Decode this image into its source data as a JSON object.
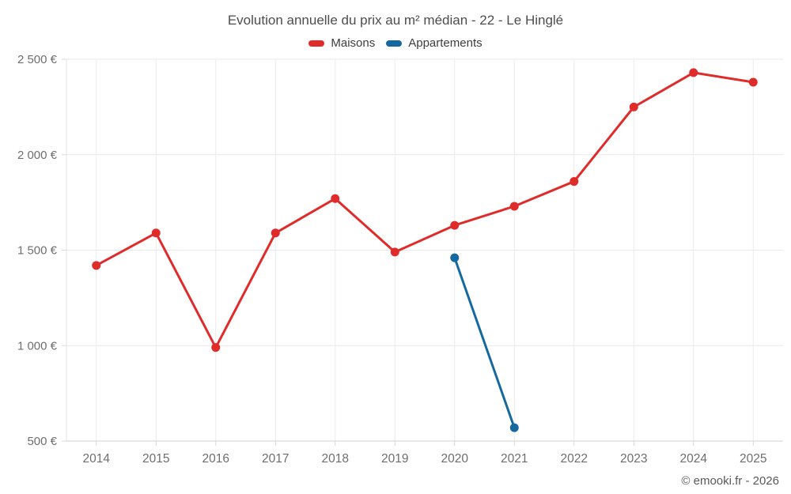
{
  "header": {
    "title": "Evolution annuelle du prix au m² médian - 22 - Le Hinglé"
  },
  "legend": {
    "items": [
      {
        "label": "Maisons",
        "color": "#e02b2b"
      },
      {
        "label": "Appartements",
        "color": "#16699f"
      }
    ]
  },
  "footer": {
    "credit": "© emooki.fr - 2026"
  },
  "chart_data": {
    "type": "line",
    "title": "Evolution annuelle du prix au m² médian - 22 - Le Hinglé",
    "categories": [
      "2014",
      "2015",
      "2016",
      "2017",
      "2018",
      "2019",
      "2020",
      "2021",
      "2022",
      "2023",
      "2024",
      "2025"
    ],
    "series": [
      {
        "name": "Maisons",
        "color": "#e02b2b",
        "values": [
          1420,
          1590,
          990,
          1590,
          1770,
          1490,
          1630,
          1730,
          1860,
          2250,
          2430,
          2380
        ]
      },
      {
        "name": "Appartements",
        "color": "#16699f",
        "values": [
          null,
          null,
          null,
          null,
          null,
          null,
          1460,
          570,
          null,
          null,
          null,
          null
        ]
      }
    ],
    "xlabel": "",
    "ylabel": "",
    "ylim": [
      500,
      2500
    ],
    "yticks": [
      500,
      1000,
      1500,
      2000,
      2500
    ],
    "ytick_labels": [
      "500 €",
      "1 000 €",
      "1 500 €",
      "2 000 €",
      "2 500 €"
    ],
    "currency_suffix": "€",
    "grid": true,
    "legend_position": "top"
  }
}
